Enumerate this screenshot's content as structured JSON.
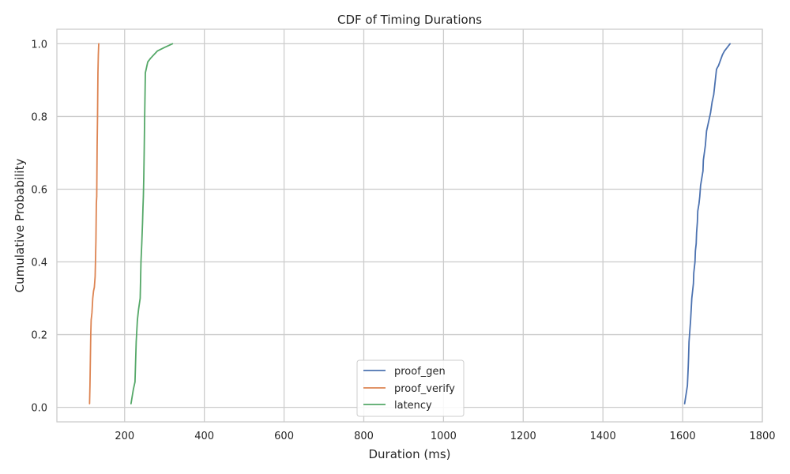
{
  "chart_data": {
    "type": "line",
    "title": "CDF of Timing Durations",
    "xlabel": "Duration (ms)",
    "ylabel": "Cumulative Probability",
    "xlim": [
      30,
      1800
    ],
    "ylim": [
      -0.04,
      1.04
    ],
    "xticks": [
      200,
      400,
      600,
      800,
      1000,
      1200,
      1400,
      1600,
      1800
    ],
    "yticks": [
      0.0,
      0.2,
      0.4,
      0.6,
      0.8,
      1.0
    ],
    "xtick_labels": [
      "200",
      "400",
      "600",
      "800",
      "1000",
      "1200",
      "1400",
      "1600",
      "1800"
    ],
    "ytick_labels": [
      "0.0",
      "0.2",
      "0.4",
      "0.6",
      "0.8",
      "1.0"
    ],
    "grid": true,
    "legend_position": "lower center",
    "series": [
      {
        "name": "proof_gen",
        "color": "#4c72b0",
        "x": [
          1605,
          1612,
          1614,
          1615,
          1616,
          1618,
          1620,
          1622,
          1623,
          1625,
          1627,
          1628,
          1631,
          1632,
          1634,
          1635,
          1637,
          1638,
          1641,
          1643,
          1645,
          1648,
          1651,
          1652,
          1657,
          1660,
          1664,
          1670,
          1674,
          1678,
          1681,
          1685,
          1690,
          1700,
          1705,
          1712,
          1719
        ],
        "y": [
          0.01,
          0.06,
          0.11,
          0.14,
          0.18,
          0.21,
          0.24,
          0.28,
          0.3,
          0.32,
          0.34,
          0.37,
          0.4,
          0.43,
          0.45,
          0.48,
          0.51,
          0.54,
          0.56,
          0.58,
          0.61,
          0.63,
          0.65,
          0.68,
          0.72,
          0.76,
          0.78,
          0.81,
          0.84,
          0.86,
          0.89,
          0.93,
          0.94,
          0.97,
          0.98,
          0.99,
          1.0
        ]
      },
      {
        "name": "proof_verify",
        "color": "#dd8452",
        "x": [
          112,
          113,
          114,
          115,
          116,
          118,
          120,
          122,
          124,
          126,
          127,
          128,
          129,
          130,
          131,
          132,
          133,
          134,
          135
        ],
        "y": [
          0.01,
          0.06,
          0.13,
          0.2,
          0.24,
          0.26,
          0.3,
          0.32,
          0.33,
          0.36,
          0.41,
          0.46,
          0.56,
          0.58,
          0.72,
          0.8,
          0.92,
          0.97,
          1.0
        ]
      },
      {
        "name": "latency",
        "color": "#55a868",
        "x": [
          216,
          219,
          222,
          226,
          229,
          232,
          235,
          239,
          240,
          241,
          243,
          245,
          246,
          247,
          248,
          249,
          250,
          251,
          252,
          254,
          258,
          265,
          282,
          300,
          320
        ],
        "y": [
          0.01,
          0.03,
          0.05,
          0.07,
          0.18,
          0.24,
          0.27,
          0.3,
          0.35,
          0.4,
          0.45,
          0.51,
          0.55,
          0.58,
          0.63,
          0.7,
          0.78,
          0.85,
          0.92,
          0.93,
          0.95,
          0.96,
          0.98,
          0.99,
          1.0
        ]
      }
    ]
  }
}
